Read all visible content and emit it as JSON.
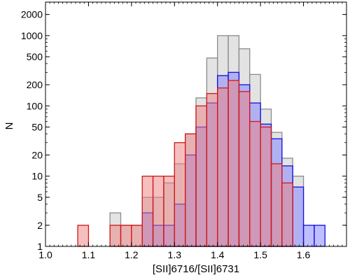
{
  "chart_data": {
    "type": "histogram",
    "xlabel": "[SII]6716/[SII]6731",
    "ylabel": "N",
    "xlim": [
      1.0,
      1.7
    ],
    "ylim": [
      1,
      3000
    ],
    "yscale": "log",
    "bin_width": 0.025,
    "x_ticks": [
      {
        "value": 1.0,
        "label": "1.0"
      },
      {
        "value": 1.1,
        "label": "1.1"
      },
      {
        "value": 1.2,
        "label": "1.2"
      },
      {
        "value": 1.3,
        "label": "1.3"
      },
      {
        "value": 1.4,
        "label": "1.4"
      },
      {
        "value": 1.5,
        "label": "1.5"
      },
      {
        "value": 1.6,
        "label": "1.6"
      }
    ],
    "y_ticks": [
      {
        "value": 1,
        "label": "1"
      },
      {
        "value": 2,
        "label": "2"
      },
      {
        "value": 5,
        "label": "5"
      },
      {
        "value": 10,
        "label": "10"
      },
      {
        "value": 20,
        "label": "20"
      },
      {
        "value": 50,
        "label": "50"
      },
      {
        "value": 100,
        "label": "100"
      },
      {
        "value": 200,
        "label": "200"
      },
      {
        "value": 500,
        "label": "500"
      },
      {
        "value": 1000,
        "label": "1000"
      },
      {
        "value": 2000,
        "label": "2000"
      }
    ],
    "series": [
      {
        "color": "#c8c8c8",
        "edge": "#8c8c8c",
        "bins": [
          [
            1.15,
            3
          ],
          [
            1.175,
            2
          ],
          [
            1.2,
            2
          ],
          [
            1.225,
            5
          ],
          [
            1.25,
            5
          ],
          [
            1.275,
            8
          ],
          [
            1.3,
            15
          ],
          [
            1.325,
            40
          ],
          [
            1.35,
            130
          ],
          [
            1.375,
            480
          ],
          [
            1.4,
            1000
          ],
          [
            1.425,
            1000
          ],
          [
            1.45,
            650
          ],
          [
            1.475,
            280
          ],
          [
            1.5,
            90
          ],
          [
            1.525,
            42
          ],
          [
            1.55,
            18
          ],
          [
            1.575,
            10
          ],
          [
            1.6,
            1
          ]
        ]
      },
      {
        "color": "#8080ff",
        "edge": "#1010e0",
        "bins": [
          [
            1.225,
            3
          ],
          [
            1.25,
            2
          ],
          [
            1.275,
            2
          ],
          [
            1.3,
            4
          ],
          [
            1.325,
            20
          ],
          [
            1.35,
            50
          ],
          [
            1.375,
            110
          ],
          [
            1.4,
            270
          ],
          [
            1.425,
            300
          ],
          [
            1.45,
            200
          ],
          [
            1.475,
            110
          ],
          [
            1.5,
            55
          ],
          [
            1.525,
            34
          ],
          [
            1.55,
            14
          ],
          [
            1.575,
            7
          ],
          [
            1.6,
            2
          ],
          [
            1.625,
            2
          ]
        ]
      },
      {
        "color": "#ee8080",
        "edge": "#d01818",
        "bins": [
          [
            1.075,
            2
          ],
          [
            1.15,
            2
          ],
          [
            1.175,
            2
          ],
          [
            1.2,
            2
          ],
          [
            1.225,
            10
          ],
          [
            1.25,
            10
          ],
          [
            1.275,
            10
          ],
          [
            1.3,
            30
          ],
          [
            1.325,
            40
          ],
          [
            1.35,
            100
          ],
          [
            1.375,
            150
          ],
          [
            1.4,
            180
          ],
          [
            1.425,
            230
          ],
          [
            1.45,
            160
          ],
          [
            1.475,
            60
          ],
          [
            1.5,
            50
          ],
          [
            1.525,
            15
          ],
          [
            1.55,
            8
          ]
        ]
      }
    ]
  }
}
